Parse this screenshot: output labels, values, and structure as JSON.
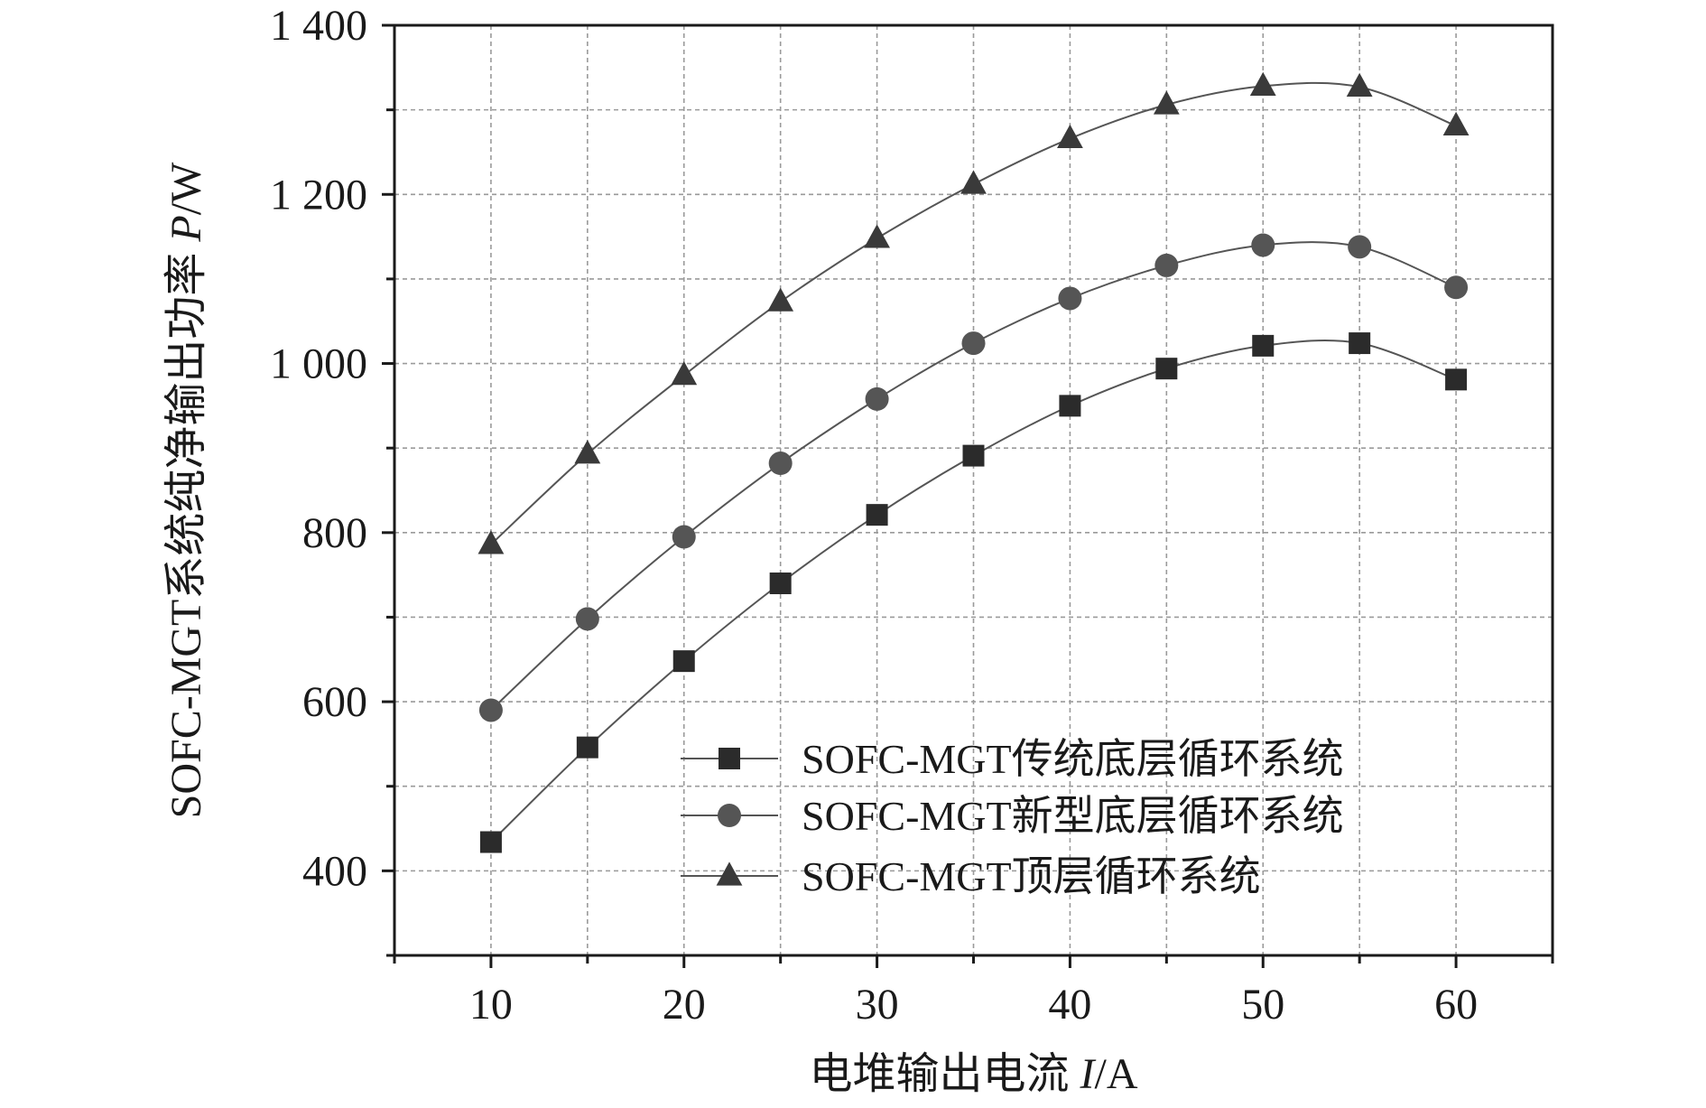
{
  "chart_data": {
    "type": "line",
    "xlabel_text": "电堆输出电流 ",
    "xlabel_var": "I",
    "xlabel_unit": "/A",
    "ylabel_text": "SOFC-MGT系统纯净输出功率 ",
    "ylabel_var": "P",
    "ylabel_unit": "/W",
    "xlim": [
      5,
      65
    ],
    "ylim": [
      300,
      1400
    ],
    "x_ticks": [
      10,
      20,
      30,
      40,
      50,
      60
    ],
    "x_tick_labels": [
      "10",
      "20",
      "30",
      "40",
      "50",
      "60"
    ],
    "y_ticks": [
      400,
      600,
      800,
      1000,
      1200,
      1400
    ],
    "y_tick_labels": [
      "400",
      "600",
      "800",
      "1 000",
      "1 200",
      "1 400"
    ],
    "grid": true,
    "legend_position": "bottom-right",
    "x": [
      10,
      15,
      20,
      25,
      30,
      35,
      40,
      45,
      50,
      55,
      60
    ],
    "series": [
      {
        "name": "SOFC-MGT传统底层循环系统",
        "marker": "square",
        "color": "#2b2b2b",
        "values": [
          434,
          546,
          648,
          740,
          821,
          891,
          950,
          994,
          1021,
          1024,
          981
        ]
      },
      {
        "name": "SOFC-MGT新型底层循环系统",
        "marker": "circle",
        "color": "#555555",
        "values": [
          590,
          698,
          795,
          882,
          958,
          1024,
          1077,
          1116,
          1140,
          1138,
          1090
        ]
      },
      {
        "name": "SOFC-MGT顶层循环系统",
        "marker": "triangle",
        "color": "#3a3a3a",
        "values": [
          786,
          893,
          986,
          1073,
          1148,
          1212,
          1266,
          1306,
          1328,
          1327,
          1281
        ]
      }
    ]
  }
}
